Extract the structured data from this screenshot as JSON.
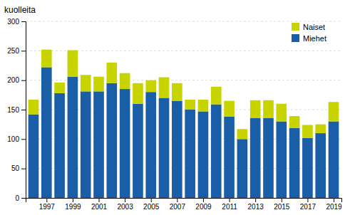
{
  "chart_data": {
    "type": "bar",
    "stacked": true,
    "ylabel": "kuolleita",
    "x": [
      1996,
      1997,
      1998,
      1999,
      2000,
      2001,
      2002,
      2003,
      2004,
      2005,
      2006,
      2007,
      2008,
      2009,
      2010,
      2011,
      2012,
      2013,
      2014,
      2015,
      2016,
      2017,
      2018,
      2019
    ],
    "series": [
      {
        "name": "Miehet",
        "color": "#1a5ea8",
        "values": [
          142,
          222,
          178,
          206,
          181,
          181,
          195,
          185,
          160,
          180,
          170,
          165,
          150,
          147,
          159,
          138,
          100,
          136,
          136,
          130,
          119,
          102,
          110,
          130
        ]
      },
      {
        "name": "Naiset",
        "color": "#c8d400",
        "values": [
          25,
          30,
          18,
          45,
          28,
          25,
          35,
          27,
          35,
          20,
          35,
          30,
          17,
          20,
          30,
          27,
          17,
          30,
          30,
          30,
          20,
          22,
          15,
          33
        ]
      }
    ],
    "xlim": [
      1995.4,
      2019.6
    ],
    "xticks": [
      1997,
      1999,
      2001,
      2003,
      2005,
      2007,
      2009,
      2011,
      2013,
      2015,
      2017,
      2019
    ],
    "ylim": [
      0,
      300
    ],
    "yticks": [
      0,
      50,
      100,
      150,
      200,
      250,
      300
    ],
    "grid": true,
    "legend": "upper right"
  }
}
